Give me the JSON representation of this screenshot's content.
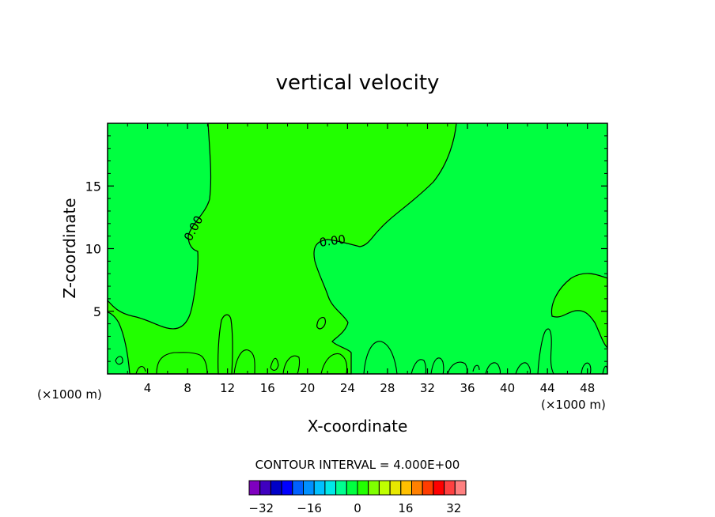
{
  "chart_data": {
    "type": "contour",
    "title": "vertical velocity",
    "xlabel": "X-coordinate",
    "ylabel": "Z-coordinate",
    "x_unit_left": "(×1000 m)",
    "x_unit_right": "(×1000 m)",
    "xlim": [
      0,
      50
    ],
    "ylim": [
      0,
      20
    ],
    "x_ticks": [
      4,
      8,
      12,
      16,
      20,
      24,
      28,
      32,
      36,
      40,
      44,
      48
    ],
    "y_ticks": [
      5,
      10,
      15
    ],
    "contour_labels": [
      {
        "text": "0.00",
        "x": 8.6,
        "y": 11.3
      },
      {
        "text": "0.00",
        "x": 22.5,
        "y": 10.3
      }
    ],
    "contour_interval_label": "CONTOUR INTERVAL = 4.000E+00",
    "colorbar": {
      "min": -36,
      "max": 36,
      "step": 4,
      "tick_values": [
        -32,
        -16,
        0,
        16,
        32
      ],
      "tick_labels": [
        "−32",
        "−16",
        "0",
        "16",
        "32"
      ],
      "colors": [
        "#7f00bf",
        "#3f00bf",
        "#0000c8",
        "#0000ff",
        "#0060ff",
        "#0090ff",
        "#00c0ff",
        "#00e8e8",
        "#00ff90",
        "#00ff40",
        "#22ff00",
        "#7fff00",
        "#bfff00",
        "#e8e800",
        "#ffc000",
        "#ff8000",
        "#ff3c00",
        "#ff0000",
        "#ff4040",
        "#ff8080"
      ]
    },
    "fields": {
      "background_color": "#00ff40",
      "positive_color": "#22ff00"
    },
    "grid": false
  }
}
